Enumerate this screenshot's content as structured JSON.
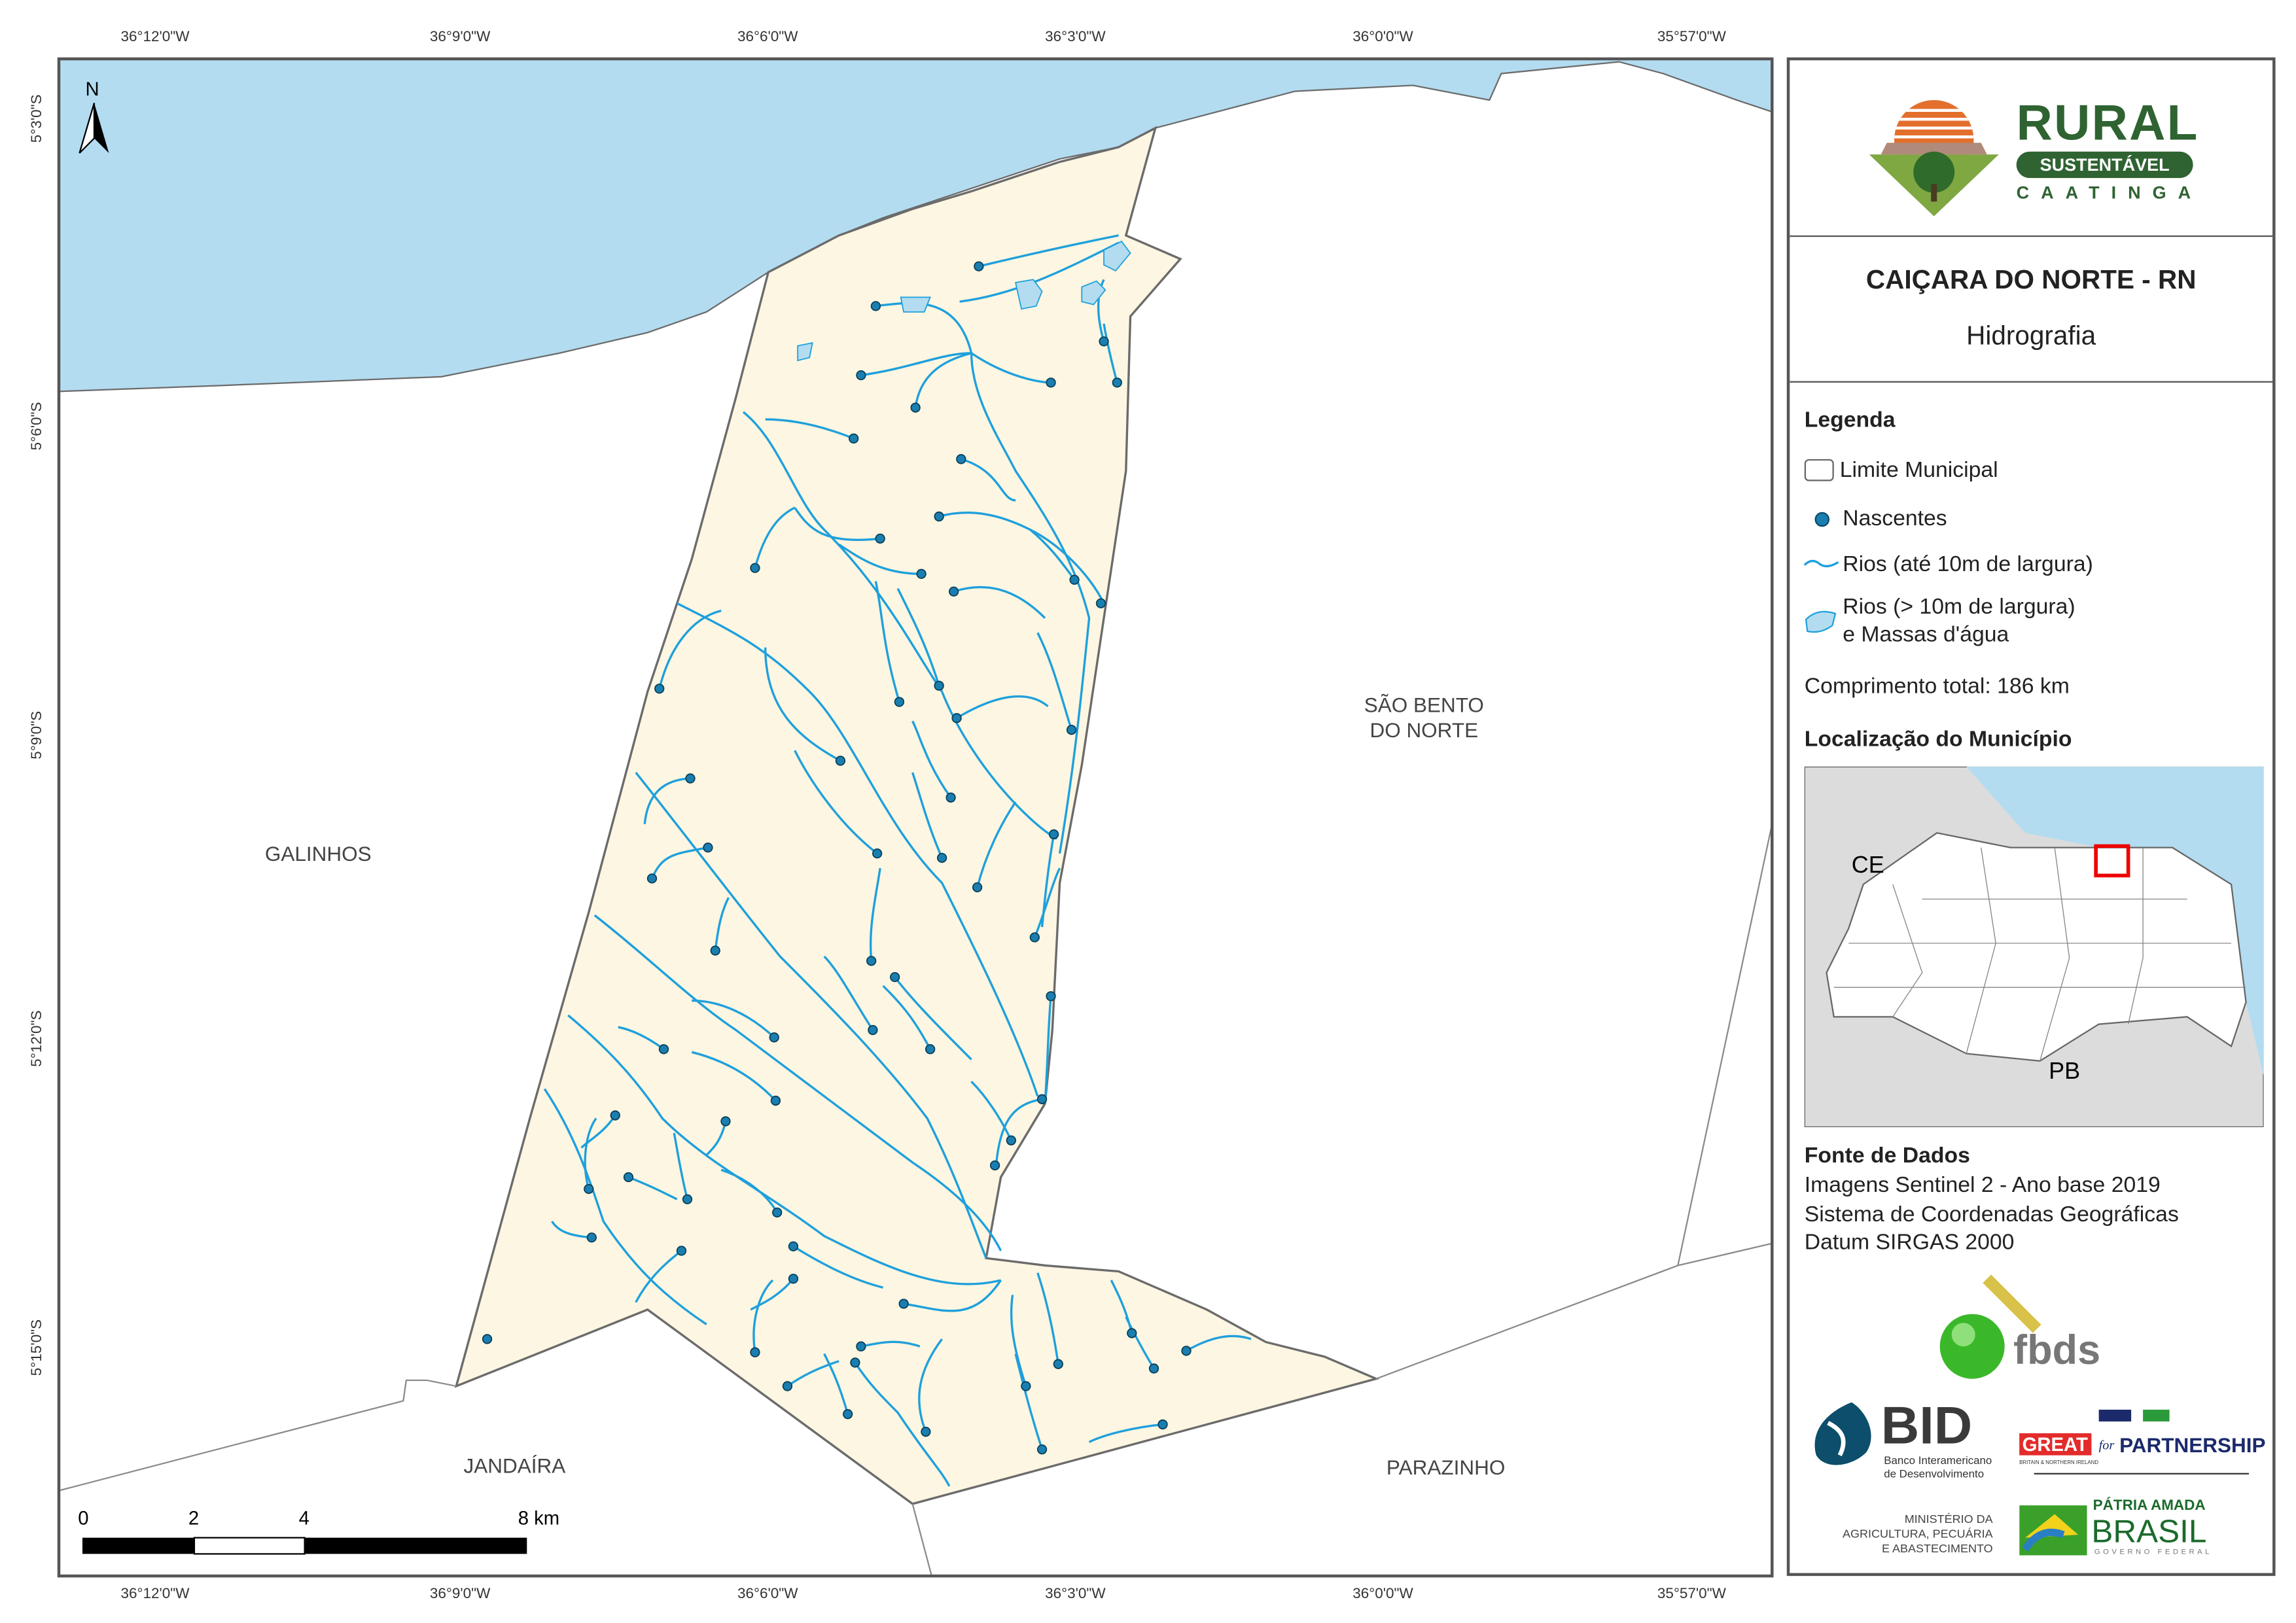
{
  "map": {
    "top_ticks": [
      "36°12'0\"W",
      "36°9'0\"W",
      "36°6'0\"W",
      "36°3'0\"W",
      "36°0'0\"W",
      "35°57'0\"W"
    ],
    "bottom_ticks": [
      "36°12'0\"W",
      "36°9'0\"W",
      "36°6'0\"W",
      "36°3'0\"W",
      "36°0'0\"W",
      "35°57'0\"W"
    ],
    "left_ticks": [
      "5°3'0\"S",
      "5°6'0\"S",
      "5°9'0\"S",
      "5°12'0\"S",
      "5°15'0\"S"
    ],
    "north_label": "N",
    "places": {
      "galinhos": "GALINHOS",
      "sao_bento_1": "SÃO BENTO",
      "sao_bento_2": "DO NORTE",
      "jandaira": "JANDAÍRA",
      "parazinho": "PARAZINHO"
    },
    "scale": {
      "labels": [
        "0",
        "2",
        "4",
        "8 km"
      ]
    },
    "colors": {
      "sea": "#b3dcf0",
      "municipality": "#fdf6e2",
      "river": "#1ea0dc",
      "spring": "#1a7fb0",
      "boundary": "#6b6b6b"
    }
  },
  "panel": {
    "logo": {
      "rural": "RURAL",
      "sustentavel": "SUSTENTÁVEL",
      "caatinga": "CAATINGA"
    },
    "title": "CAIÇARA DO NORTE - RN",
    "subtitle": "Hidrografia",
    "legend": {
      "heading": "Legenda",
      "items": [
        "Limite Municipal",
        "Nascentes",
        "Rios (até 10m de largura)",
        "Rios (> 10m de largura)",
        "e Massas d'água"
      ]
    },
    "total_length": "Comprimento total:  186 km",
    "location": {
      "heading": "Localização do Município",
      "ce": "CE",
      "pb": "PB"
    },
    "sources": {
      "heading": "Fonte de Dados",
      "lines": [
        "Imagens Sentinel 2 - Ano base 2019",
        "Sistema de Coordenadas Geográficas",
        "Datum SIRGAS 2000"
      ]
    },
    "logos": {
      "fbds": "fbds",
      "bid": "BID",
      "bid_sub1": "Banco Interamericano",
      "bid_sub2": "de Desenvolvimento",
      "great": "GREAT",
      "for": "for",
      "partnership": "PARTNERSHIP",
      "great_sub": "BRITAIN & NORTHERN IRELAND",
      "min1": "MINISTÉRIO DA",
      "min2": "AGRICULTURA, PECUÁRIA",
      "min3": "E ABASTECIMENTO",
      "patria": "PÁTRIA AMADA",
      "brasil": "BRASIL",
      "governo": "GOVERNO FEDERAL"
    }
  }
}
